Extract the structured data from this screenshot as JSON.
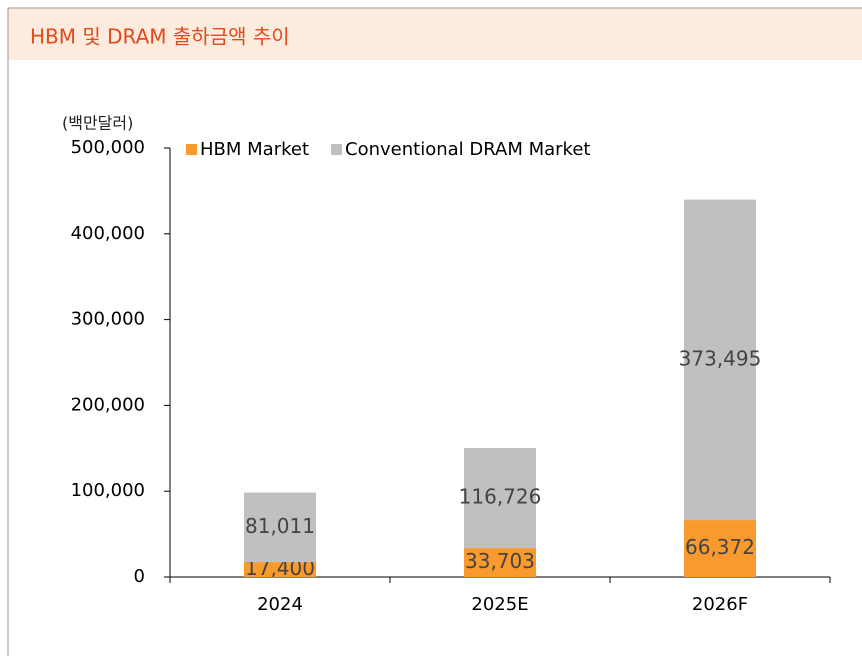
{
  "chart_data": {
    "type": "stacked_bar",
    "title": "HBM 및 DRAM 출하금액 추이",
    "y_axis_label": "(백만달러)",
    "categories": [
      "2024",
      "2025E",
      "2026F"
    ],
    "series": [
      {
        "name": "HBM Market",
        "color": "#f99a2e",
        "values": [
          17400,
          33703,
          66372
        ],
        "value_labels": [
          "17,400",
          "33,703",
          "66,372"
        ]
      },
      {
        "name": "Conventional DRAM Market",
        "color": "#c0c0c0",
        "values": [
          81011,
          116726,
          373495
        ],
        "value_labels": [
          "81,011",
          "116,726",
          "373,495"
        ]
      }
    ],
    "ylim": [
      0,
      500000
    ],
    "yticks": [
      0,
      {
        "value": 100000,
        "label": "100,000"
      },
      {
        "value": 200000,
        "label": "200,000"
      },
      {
        "value": 300000,
        "label": "300,000"
      },
      {
        "value": 400000,
        "label": "400,000"
      },
      {
        "value": 500000,
        "label": "500,000"
      }
    ],
    "legend": "top"
  }
}
